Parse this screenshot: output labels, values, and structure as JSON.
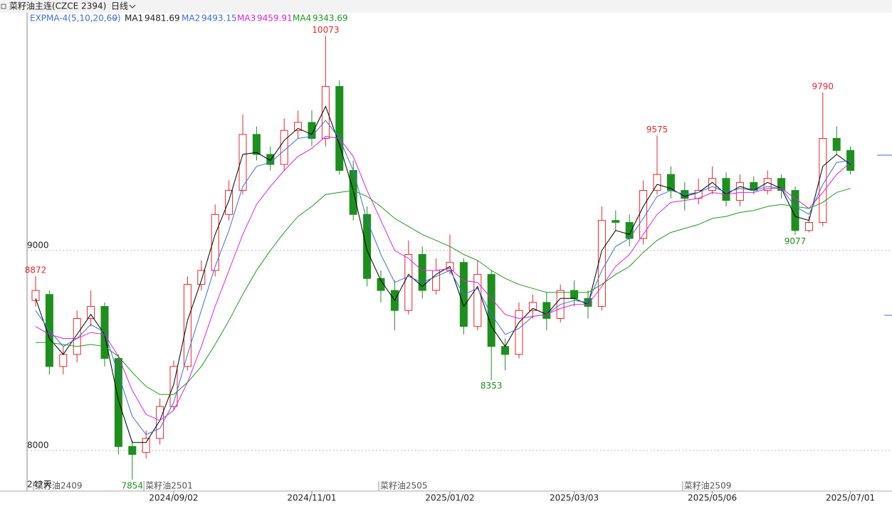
{
  "header": {
    "title": "菜籽油主连(CZCE 2394)",
    "period": "日线"
  },
  "chart_data": {
    "type": "candlestick",
    "indicator": "EXPMA-4(5,10,20,60)",
    "period_label": "242天",
    "up_color": "#e8262b",
    "down_color": "#1d8f1d",
    "ylim": [
      7797,
      10188
    ],
    "yticks": [
      8000,
      9000
    ],
    "grid": true,
    "categories": [
      null,
      null,
      null,
      null,
      null,
      null,
      null,
      null,
      null,
      null,
      "2024/09/02",
      null,
      null,
      null,
      null,
      null,
      null,
      null,
      null,
      null,
      "2024/11/01",
      null,
      null,
      null,
      null,
      null,
      null,
      null,
      null,
      null,
      "2025/01/02",
      null,
      null,
      null,
      null,
      null,
      null,
      null,
      null,
      "2025/03/03",
      null,
      null,
      null,
      null,
      null,
      null,
      null,
      null,
      null,
      "2025/05/06",
      null,
      null,
      null,
      null,
      null,
      null,
      null,
      null,
      null,
      "2025/07/01"
    ],
    "contracts": [
      "菜籽油2409",
      null,
      null,
      null,
      null,
      null,
      null,
      null,
      "菜籽油2501",
      null,
      null,
      null,
      null,
      null,
      null,
      null,
      null,
      null,
      null,
      null,
      null,
      null,
      null,
      null,
      null,
      "菜籽油2505",
      null,
      null,
      null,
      null,
      null,
      null,
      null,
      null,
      null,
      null,
      null,
      null,
      null,
      null,
      null,
      null,
      null,
      null,
      null,
      null,
      null,
      "菜籽油2509",
      null,
      null,
      null,
      null,
      null,
      null,
      null,
      null,
      null,
      null,
      null,
      null
    ],
    "open": [
      8750,
      8780,
      8420,
      8480,
      8660,
      8720,
      8460,
      8020,
      7990,
      8060,
      8220,
      8420,
      8830,
      8900,
      9180,
      9300,
      9580,
      9480,
      9430,
      9600,
      9640,
      9560,
      9820,
      9400,
      9180,
      8860,
      8800,
      8700,
      8980,
      8800,
      8900,
      8940,
      8620,
      8880,
      8520,
      8480,
      8700,
      8740,
      8660,
      8800,
      8760,
      8720,
      9150,
      9140,
      9060,
      9300,
      9380,
      9300,
      9260,
      9300,
      9360,
      9250,
      9340,
      9300,
      9360,
      9300,
      9100,
      9140,
      9560,
      9500
    ],
    "high": [
      8872,
      8800,
      8520,
      8700,
      8800,
      8740,
      8480,
      8050,
      8100,
      8260,
      8450,
      8870,
      8950,
      9230,
      9350,
      9680,
      9620,
      9520,
      9660,
      9700,
      9700,
      10073,
      9850,
      9450,
      9220,
      8900,
      8850,
      9050,
      9020,
      8960,
      9080,
      8960,
      8950,
      8900,
      8560,
      8740,
      8780,
      8790,
      8830,
      8850,
      8800,
      9220,
      9200,
      9180,
      9350,
      9575,
      9420,
      9340,
      9360,
      9420,
      9390,
      9380,
      9370,
      9400,
      9380,
      9320,
      9170,
      9790,
      9620,
      9520
    ],
    "low": [
      8720,
      8380,
      8380,
      8440,
      8620,
      8420,
      7980,
      7854,
      7960,
      8030,
      8200,
      8400,
      8800,
      8870,
      9150,
      9280,
      9450,
      9400,
      9400,
      9560,
      9520,
      9520,
      9380,
      9150,
      8820,
      8740,
      8600,
      8680,
      8760,
      8780,
      8880,
      8580,
      8600,
      8353,
      8400,
      8460,
      8660,
      8600,
      8640,
      8720,
      8660,
      8700,
      9100,
      9020,
      9030,
      9280,
      9260,
      9200,
      9230,
      9280,
      9220,
      9220,
      9280,
      9280,
      9260,
      9077,
      9090,
      9120,
      9480,
      9380
    ],
    "close": [
      8800,
      8420,
      8480,
      8660,
      8720,
      8460,
      8020,
      7980,
      8060,
      8220,
      8420,
      8830,
      8900,
      9180,
      9300,
      9580,
      9480,
      9430,
      9600,
      9640,
      9560,
      9820,
      9400,
      9180,
      8860,
      8800,
      8700,
      8980,
      8800,
      8900,
      8940,
      8620,
      8880,
      8520,
      8480,
      8700,
      8740,
      8660,
      8800,
      8760,
      8720,
      9150,
      9140,
      9060,
      9300,
      9380,
      9300,
      9260,
      9300,
      9360,
      9250,
      9340,
      9300,
      9360,
      9300,
      9100,
      9140,
      9560,
      9500,
      9400
    ],
    "series": [
      {
        "name": "MA1",
        "current": 9481.69,
        "color": "#000000",
        "values": [
          8760,
          8560,
          8480,
          8580,
          8680,
          8580,
          8250,
          8040,
          8040,
          8150,
          8330,
          8650,
          8850,
          9080,
          9250,
          9480,
          9490,
          9450,
          9550,
          9610,
          9580,
          9720,
          9530,
          9300,
          9000,
          8850,
          8750,
          8880,
          8820,
          8880,
          8920,
          8720,
          8820,
          8620,
          8520,
          8640,
          8710,
          8680,
          8760,
          8760,
          8730,
          9000,
          9100,
          9080,
          9220,
          9330,
          9310,
          9270,
          9290,
          9340,
          9280,
          9320,
          9300,
          9340,
          9310,
          9170,
          9150,
          9420,
          9480,
          9430
        ]
      },
      {
        "name": "MA2",
        "current": 9493.15,
        "color": "#3a6fe0",
        "values": [
          8700,
          8600,
          8520,
          8560,
          8630,
          8590,
          8380,
          8170,
          8080,
          8110,
          8240,
          8480,
          8700,
          8920,
          9100,
          9320,
          9420,
          9440,
          9500,
          9560,
          9570,
          9650,
          9560,
          9400,
          9150,
          8980,
          8840,
          8870,
          8840,
          8870,
          8900,
          8780,
          8810,
          8680,
          8580,
          8610,
          8670,
          8680,
          8730,
          8750,
          8740,
          8900,
          9020,
          9060,
          9160,
          9270,
          9300,
          9280,
          9290,
          9320,
          9290,
          9310,
          9300,
          9320,
          9310,
          9220,
          9180,
          9330,
          9440,
          9450
        ]
      },
      {
        "name": "MA3",
        "current": 9459.91,
        "color": "#e020e0",
        "values": [
          8620,
          8580,
          8560,
          8560,
          8590,
          8580,
          8470,
          8300,
          8180,
          8150,
          8200,
          8340,
          8520,
          8720,
          8900,
          9080,
          9230,
          9320,
          9400,
          9470,
          9510,
          9570,
          9560,
          9470,
          9300,
          9150,
          9000,
          8960,
          8900,
          8900,
          8910,
          8850,
          8840,
          8760,
          8680,
          8660,
          8670,
          8680,
          8710,
          8730,
          8730,
          8820,
          8920,
          8980,
          9080,
          9180,
          9240,
          9250,
          9260,
          9290,
          9280,
          9290,
          9290,
          9310,
          9310,
          9260,
          9210,
          9290,
          9380,
          9440
        ]
      },
      {
        "name": "MA4",
        "current": 9343.69,
        "color": "#1a9a1a",
        "values": [
          8540,
          8540,
          8530,
          8520,
          8530,
          8520,
          8470,
          8390,
          8320,
          8280,
          8280,
          8340,
          8420,
          8530,
          8650,
          8780,
          8900,
          9000,
          9090,
          9170,
          9220,
          9280,
          9290,
          9300,
          9270,
          9220,
          9160,
          9120,
          9080,
          9050,
          9020,
          8980,
          8950,
          8900,
          8860,
          8830,
          8810,
          8790,
          8790,
          8790,
          8790,
          8830,
          8880,
          8920,
          8990,
          9050,
          9090,
          9110,
          9130,
          9160,
          9170,
          9190,
          9200,
          9220,
          9230,
          9220,
          9210,
          9240,
          9290,
          9310
        ]
      }
    ]
  }
}
